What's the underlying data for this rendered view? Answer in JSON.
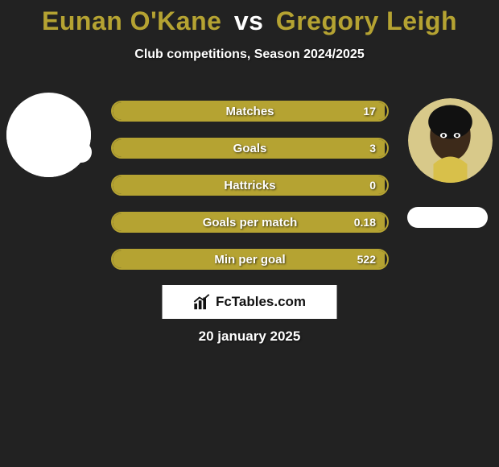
{
  "title": {
    "player1": "Eunan O'Kane",
    "vs": "vs",
    "player2": "Gregory Leigh",
    "player1_color": "#b5a332",
    "player2_color": "#b5a332",
    "vs_color": "#ffffff",
    "fontsize": 32
  },
  "subtitle": "Club competitions, Season 2024/2025",
  "background_color": "#222222",
  "bars": {
    "border_color": "#b5a332",
    "fill_color": "#b5a332",
    "text_color": "#ffffff",
    "label_fontsize": 15,
    "value_fontsize": 14,
    "items": [
      {
        "label": "Matches",
        "value": "17",
        "fill_pct": 99
      },
      {
        "label": "Goals",
        "value": "3",
        "fill_pct": 99
      },
      {
        "label": "Hattricks",
        "value": "0",
        "fill_pct": 99
      },
      {
        "label": "Goals per match",
        "value": "0.18",
        "fill_pct": 99
      },
      {
        "label": "Min per goal",
        "value": "522",
        "fill_pct": 99
      }
    ]
  },
  "avatars": {
    "left": {
      "bg": "#ffffff"
    },
    "right": {
      "bg": "#2b2b2b"
    }
  },
  "brand": {
    "text": "FcTables.com",
    "bg": "#ffffff",
    "text_color": "#111111"
  },
  "date": "20 january 2025"
}
